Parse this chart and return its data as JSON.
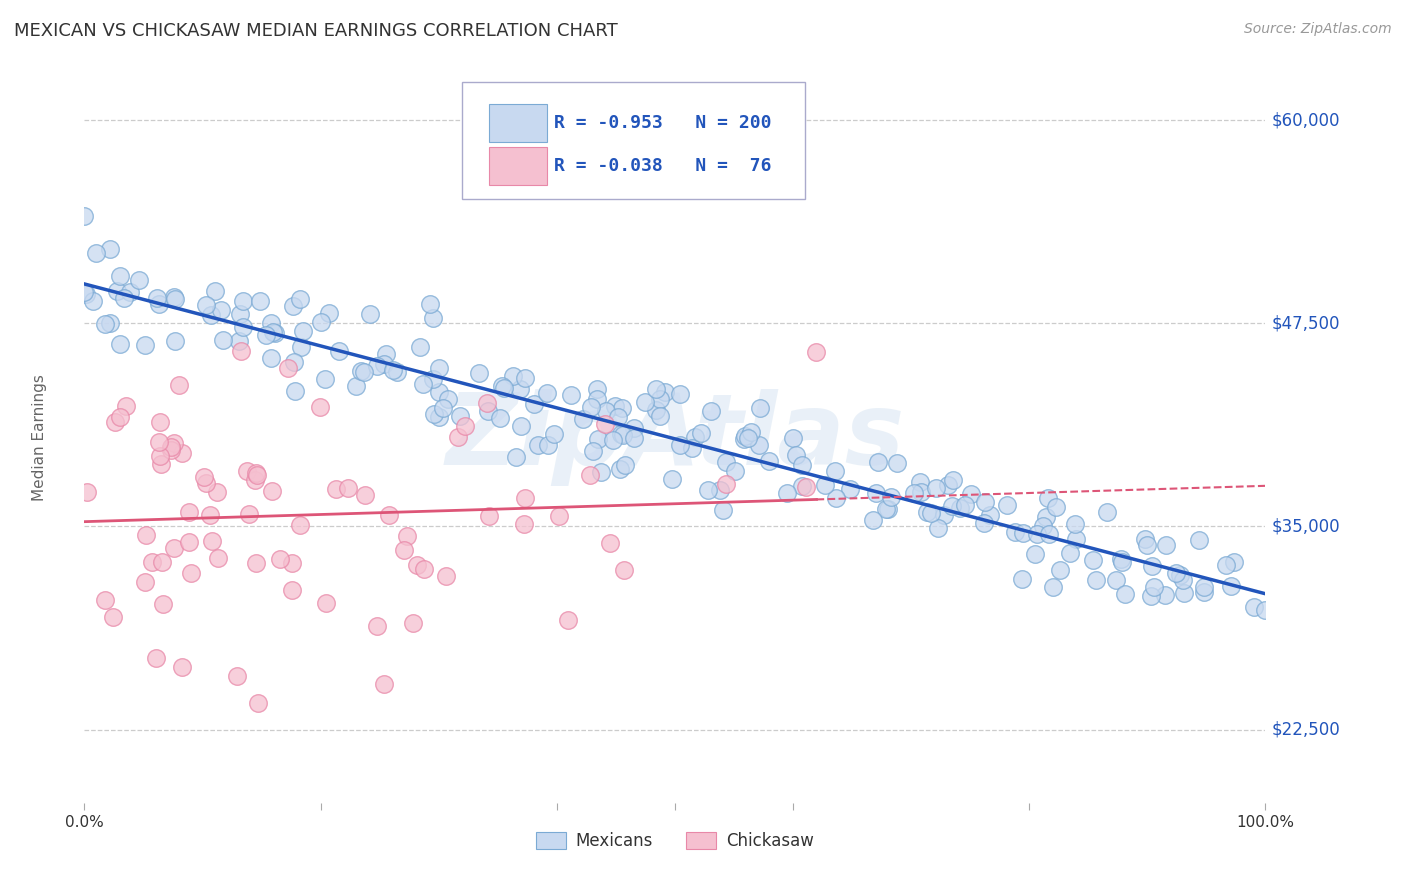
{
  "title": "MEXICAN VS CHICKASAW MEDIAN EARNINGS CORRELATION CHART",
  "source": "Source: ZipAtlas.com",
  "ylabel": "Median Earnings",
  "ytick_labels": [
    "$22,500",
    "$35,000",
    "$47,500",
    "$60,000"
  ],
  "ytick_values": [
    22500,
    35000,
    47500,
    60000
  ],
  "ymin": 18000,
  "ymax": 63000,
  "xmin": 0.0,
  "xmax": 1.0,
  "blue_R": "-0.953",
  "blue_N": "200",
  "pink_R": "-0.038",
  "pink_N": "76",
  "blue_face_color": "#c8d9f0",
  "blue_edge_color": "#7baad4",
  "pink_face_color": "#f5c0d0",
  "pink_edge_color": "#e888a8",
  "blue_line_color": "#2255bb",
  "pink_line_color": "#dd5577",
  "watermark_color": "#b8d0e8",
  "background_color": "#ffffff",
  "grid_color": "#cccccc",
  "legend_label_blue": "Mexicans",
  "legend_label_pink": "Chickasaw",
  "title_fontsize": 13,
  "source_fontsize": 10,
  "axis_label_color": "#2255bb",
  "text_color": "#333333"
}
